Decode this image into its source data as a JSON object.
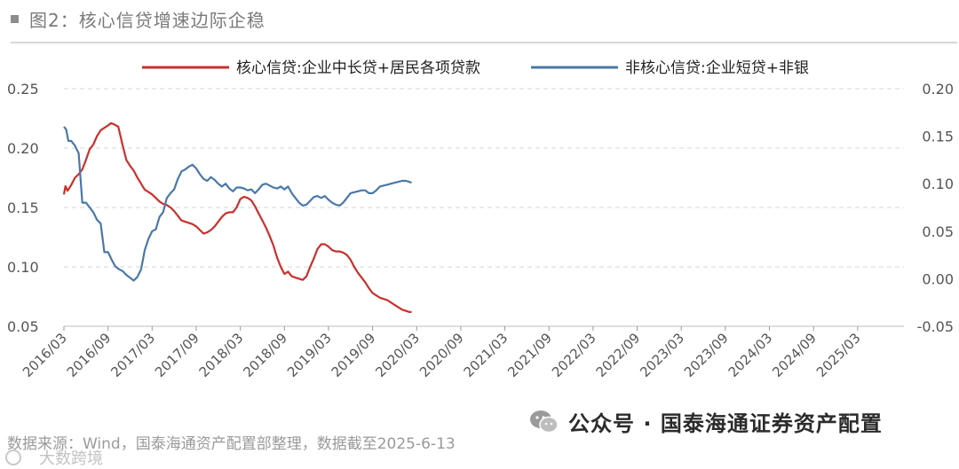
{
  "header": {
    "title": "图2：核心信贷增速边际企稳"
  },
  "source": "数据来源：Wind，国泰海通资产配置部整理，数据截至2025-6-13",
  "watermark": {
    "brand": "公众号 · 国泰海通证券资产配置",
    "faint": "大数跨境"
  },
  "colors": {
    "core": "#c9302c",
    "noncore": "#4a78a8",
    "grid": "#d4d4d4",
    "axis": "#555555"
  },
  "chart_data": {
    "type": "line",
    "title": "核心信贷增速边际企稳",
    "x_labels": [
      "2016/03",
      "2016/09",
      "2017/03",
      "2017/09",
      "2018/03",
      "2018/09",
      "2019/03",
      "2019/09",
      "2020/03",
      "2020/09",
      "2021/03",
      "2021/09",
      "2022/03",
      "2022/09",
      "2023/03",
      "2023/09",
      "2024/03",
      "2024/09",
      "2025/03"
    ],
    "left_axis": {
      "min": 0.05,
      "max": 0.25,
      "ticks": [
        "0.25",
        "0.20",
        "0.15",
        "0.10",
        "0.05"
      ]
    },
    "right_axis": {
      "min": -0.05,
      "max": 0.2,
      "ticks": [
        "0.20",
        "0.15",
        "0.10",
        "0.05",
        "0.00",
        "-0.05"
      ]
    },
    "grid": true,
    "legend_position": "top",
    "series": [
      {
        "name": "核心信贷:企业中长贷+居民各项贷款",
        "axis": "left",
        "points": [
          [
            0,
            0.161
          ],
          [
            0.2,
            0.168
          ],
          [
            0.5,
            0.164
          ],
          [
            1,
            0.169
          ],
          [
            1.5,
            0.175
          ],
          [
            2,
            0.178
          ],
          [
            2.5,
            0.182
          ],
          [
            3,
            0.19
          ],
          [
            3.5,
            0.199
          ],
          [
            4,
            0.203
          ],
          [
            4.5,
            0.21
          ],
          [
            5,
            0.215
          ],
          [
            5.5,
            0.217
          ],
          [
            6,
            0.219
          ],
          [
            6.4,
            0.221
          ],
          [
            6.8,
            0.22
          ],
          [
            7.4,
            0.218
          ],
          [
            8,
            0.202
          ],
          [
            8.5,
            0.19
          ],
          [
            9,
            0.185
          ],
          [
            9.5,
            0.181
          ],
          [
            10,
            0.175
          ],
          [
            10.5,
            0.17
          ],
          [
            11,
            0.165
          ],
          [
            11.5,
            0.163
          ],
          [
            12,
            0.161
          ],
          [
            12.5,
            0.158
          ],
          [
            13,
            0.155
          ],
          [
            13.5,
            0.153
          ],
          [
            14,
            0.152
          ],
          [
            14.5,
            0.15
          ],
          [
            15,
            0.147
          ],
          [
            15.5,
            0.143
          ],
          [
            16,
            0.139
          ],
          [
            16.5,
            0.138
          ],
          [
            17,
            0.137
          ],
          [
            17.5,
            0.136
          ],
          [
            18,
            0.134
          ],
          [
            18.5,
            0.131
          ],
          [
            19,
            0.128
          ],
          [
            19.5,
            0.129
          ],
          [
            20,
            0.131
          ],
          [
            20.5,
            0.134
          ],
          [
            21,
            0.138
          ],
          [
            21.5,
            0.142
          ],
          [
            22,
            0.145
          ],
          [
            22.5,
            0.146
          ],
          [
            23,
            0.146
          ],
          [
            23.5,
            0.15
          ],
          [
            24,
            0.157
          ],
          [
            24.5,
            0.159
          ],
          [
            25,
            0.158
          ],
          [
            25.5,
            0.156
          ],
          [
            26,
            0.151
          ],
          [
            26.5,
            0.145
          ],
          [
            27,
            0.139
          ],
          [
            27.5,
            0.133
          ],
          [
            28,
            0.126
          ],
          [
            28.5,
            0.118
          ],
          [
            29,
            0.108
          ],
          [
            29.5,
            0.1
          ],
          [
            30,
            0.094
          ],
          [
            30.5,
            0.096
          ],
          [
            31,
            0.092
          ],
          [
            31.5,
            0.091
          ],
          [
            32,
            0.09
          ],
          [
            32.5,
            0.089
          ],
          [
            33,
            0.092
          ],
          [
            33.5,
            0.1
          ],
          [
            34,
            0.107
          ],
          [
            34.5,
            0.115
          ],
          [
            35,
            0.119
          ],
          [
            35.5,
            0.119
          ],
          [
            36,
            0.117
          ],
          [
            36.5,
            0.114
          ],
          [
            37,
            0.113
          ],
          [
            37.5,
            0.113
          ],
          [
            38,
            0.112
          ],
          [
            38.5,
            0.11
          ],
          [
            39,
            0.106
          ],
          [
            39.5,
            0.1
          ],
          [
            40,
            0.095
          ],
          [
            40.5,
            0.091
          ],
          [
            41,
            0.087
          ],
          [
            41.5,
            0.082
          ],
          [
            42,
            0.078
          ],
          [
            42.5,
            0.076
          ],
          [
            43,
            0.074
          ],
          [
            43.5,
            0.073
          ],
          [
            44,
            0.072
          ],
          [
            44.5,
            0.07
          ],
          [
            45,
            0.068
          ],
          [
            45.5,
            0.066
          ],
          [
            46,
            0.064
          ],
          [
            46.5,
            0.063
          ],
          [
            47,
            0.062
          ],
          [
            47.3,
            0.062
          ]
        ]
      },
      {
        "name": "非核心信贷:企业短贷+非银",
        "axis": "right",
        "points": [
          [
            0,
            0.16
          ],
          [
            0.3,
            0.157
          ],
          [
            0.6,
            0.145
          ],
          [
            1,
            0.145
          ],
          [
            1.5,
            0.14
          ],
          [
            2,
            0.132
          ],
          [
            2.5,
            0.08
          ],
          [
            3,
            0.08
          ],
          [
            3.5,
            0.075
          ],
          [
            4,
            0.07
          ],
          [
            4.5,
            0.062
          ],
          [
            5,
            0.058
          ],
          [
            5.5,
            0.028
          ],
          [
            6,
            0.028
          ],
          [
            6.5,
            0.02
          ],
          [
            7,
            0.013
          ],
          [
            7.5,
            0.01
          ],
          [
            8,
            0.008
          ],
          [
            8.5,
            0.004
          ],
          [
            9,
            0.001
          ],
          [
            9.5,
            -0.002
          ],
          [
            10,
            0.002
          ],
          [
            10.5,
            0.01
          ],
          [
            11,
            0.03
          ],
          [
            11.5,
            0.042
          ],
          [
            12,
            0.05
          ],
          [
            12.5,
            0.052
          ],
          [
            13,
            0.065
          ],
          [
            13.5,
            0.07
          ],
          [
            14,
            0.085
          ],
          [
            14.5,
            0.09
          ],
          [
            15,
            0.094
          ],
          [
            15.5,
            0.105
          ],
          [
            16,
            0.113
          ],
          [
            16.5,
            0.115
          ],
          [
            17,
            0.118
          ],
          [
            17.5,
            0.12
          ],
          [
            18,
            0.116
          ],
          [
            18.5,
            0.11
          ],
          [
            19,
            0.105
          ],
          [
            19.5,
            0.103
          ],
          [
            20,
            0.107
          ],
          [
            20.5,
            0.104
          ],
          [
            21,
            0.1
          ],
          [
            21.5,
            0.097
          ],
          [
            22,
            0.1
          ],
          [
            22.5,
            0.095
          ],
          [
            23,
            0.092
          ],
          [
            23.5,
            0.096
          ],
          [
            24,
            0.096
          ],
          [
            24.5,
            0.095
          ],
          [
            25,
            0.093
          ],
          [
            25.5,
            0.094
          ],
          [
            26,
            0.09
          ],
          [
            26.5,
            0.094
          ],
          [
            27,
            0.099
          ],
          [
            27.5,
            0.1
          ],
          [
            28,
            0.098
          ],
          [
            28.5,
            0.096
          ],
          [
            29,
            0.095
          ],
          [
            29.5,
            0.097
          ],
          [
            30,
            0.094
          ],
          [
            30.5,
            0.097
          ],
          [
            31,
            0.09
          ],
          [
            31.5,
            0.085
          ],
          [
            32,
            0.08
          ],
          [
            32.5,
            0.077
          ],
          [
            33,
            0.078
          ],
          [
            33.5,
            0.082
          ],
          [
            34,
            0.086
          ],
          [
            34.5,
            0.087
          ],
          [
            35,
            0.085
          ],
          [
            35.5,
            0.087
          ],
          [
            36,
            0.083
          ],
          [
            36.5,
            0.08
          ],
          [
            37,
            0.078
          ],
          [
            37.5,
            0.077
          ],
          [
            38,
            0.08
          ],
          [
            38.5,
            0.085
          ],
          [
            39,
            0.09
          ],
          [
            39.5,
            0.091
          ],
          [
            40,
            0.092
          ],
          [
            40.5,
            0.093
          ],
          [
            41,
            0.093
          ],
          [
            41.5,
            0.09
          ],
          [
            42,
            0.09
          ],
          [
            42.5,
            0.093
          ],
          [
            43,
            0.097
          ],
          [
            43.5,
            0.098
          ],
          [
            44,
            0.099
          ],
          [
            44.5,
            0.1
          ],
          [
            45,
            0.101
          ],
          [
            45.5,
            0.102
          ],
          [
            46,
            0.103
          ],
          [
            46.5,
            0.103
          ],
          [
            47,
            0.102
          ],
          [
            47.3,
            0.101
          ]
        ]
      }
    ]
  }
}
